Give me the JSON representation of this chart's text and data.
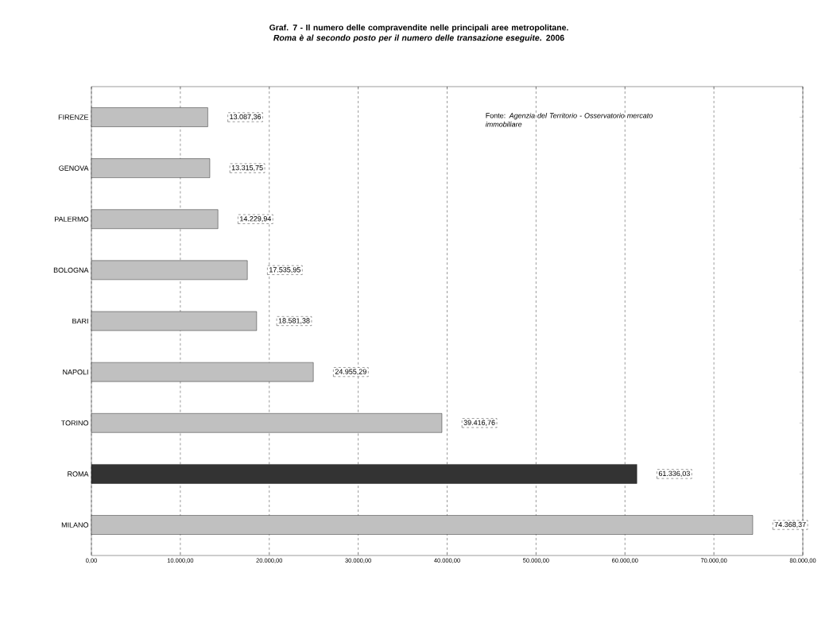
{
  "chart_data": {
    "type": "bar",
    "orientation": "horizontal",
    "title": "Graf. 7 - Il numero delle compravendite nelle principali aree metropolitane. *Roma è al secondo posto per il numero delle transazione eseguite*. 2006",
    "annotations": [
      "Fonte: *Agenzia del Territorio - Osservatorio mercato immobiliare*"
    ],
    "categories": [
      "FIRENZE",
      "GENOVA",
      "PALERMO",
      "BOLOGNA",
      "BARI",
      "NAPOLI",
      "TORINO",
      "ROMA",
      "MILANO"
    ],
    "values": [
      13087.36,
      13315.75,
      14229.94,
      17535.95,
      18581.38,
      24955.29,
      39416.76,
      61336.03,
      74368.37
    ],
    "value_labels": [
      "13.087,36",
      "13.315,75",
      "14.229,94",
      "17.535,95",
      "18.581,38",
      "24.955,29",
      "39.416,76",
      "61.336,03",
      "74.368,37"
    ],
    "colors": [
      "#c0c0c0",
      "#c0c0c0",
      "#c0c0c0",
      "#c0c0c0",
      "#c0c0c0",
      "#c0c0c0",
      "#c0c0c0",
      "#333333",
      "#c0c0c0"
    ],
    "xlim": [
      0,
      80000
    ],
    "xticks": [
      {
        "value": 0,
        "label": "0,00"
      },
      {
        "value": 10000,
        "label": "10.000,00"
      },
      {
        "value": 20000,
        "label": "20.000,00"
      },
      {
        "value": 30000,
        "label": "30.000,00"
      },
      {
        "value": 40000,
        "label": "40.000,00"
      },
      {
        "value": 50000,
        "label": "50.000,00"
      },
      {
        "value": 60000,
        "label": "60.000,00"
      },
      {
        "value": 70000,
        "label": "70.000,00"
      },
      {
        "value": 80000,
        "label": "80.000,00"
      }
    ],
    "grid": "x"
  }
}
